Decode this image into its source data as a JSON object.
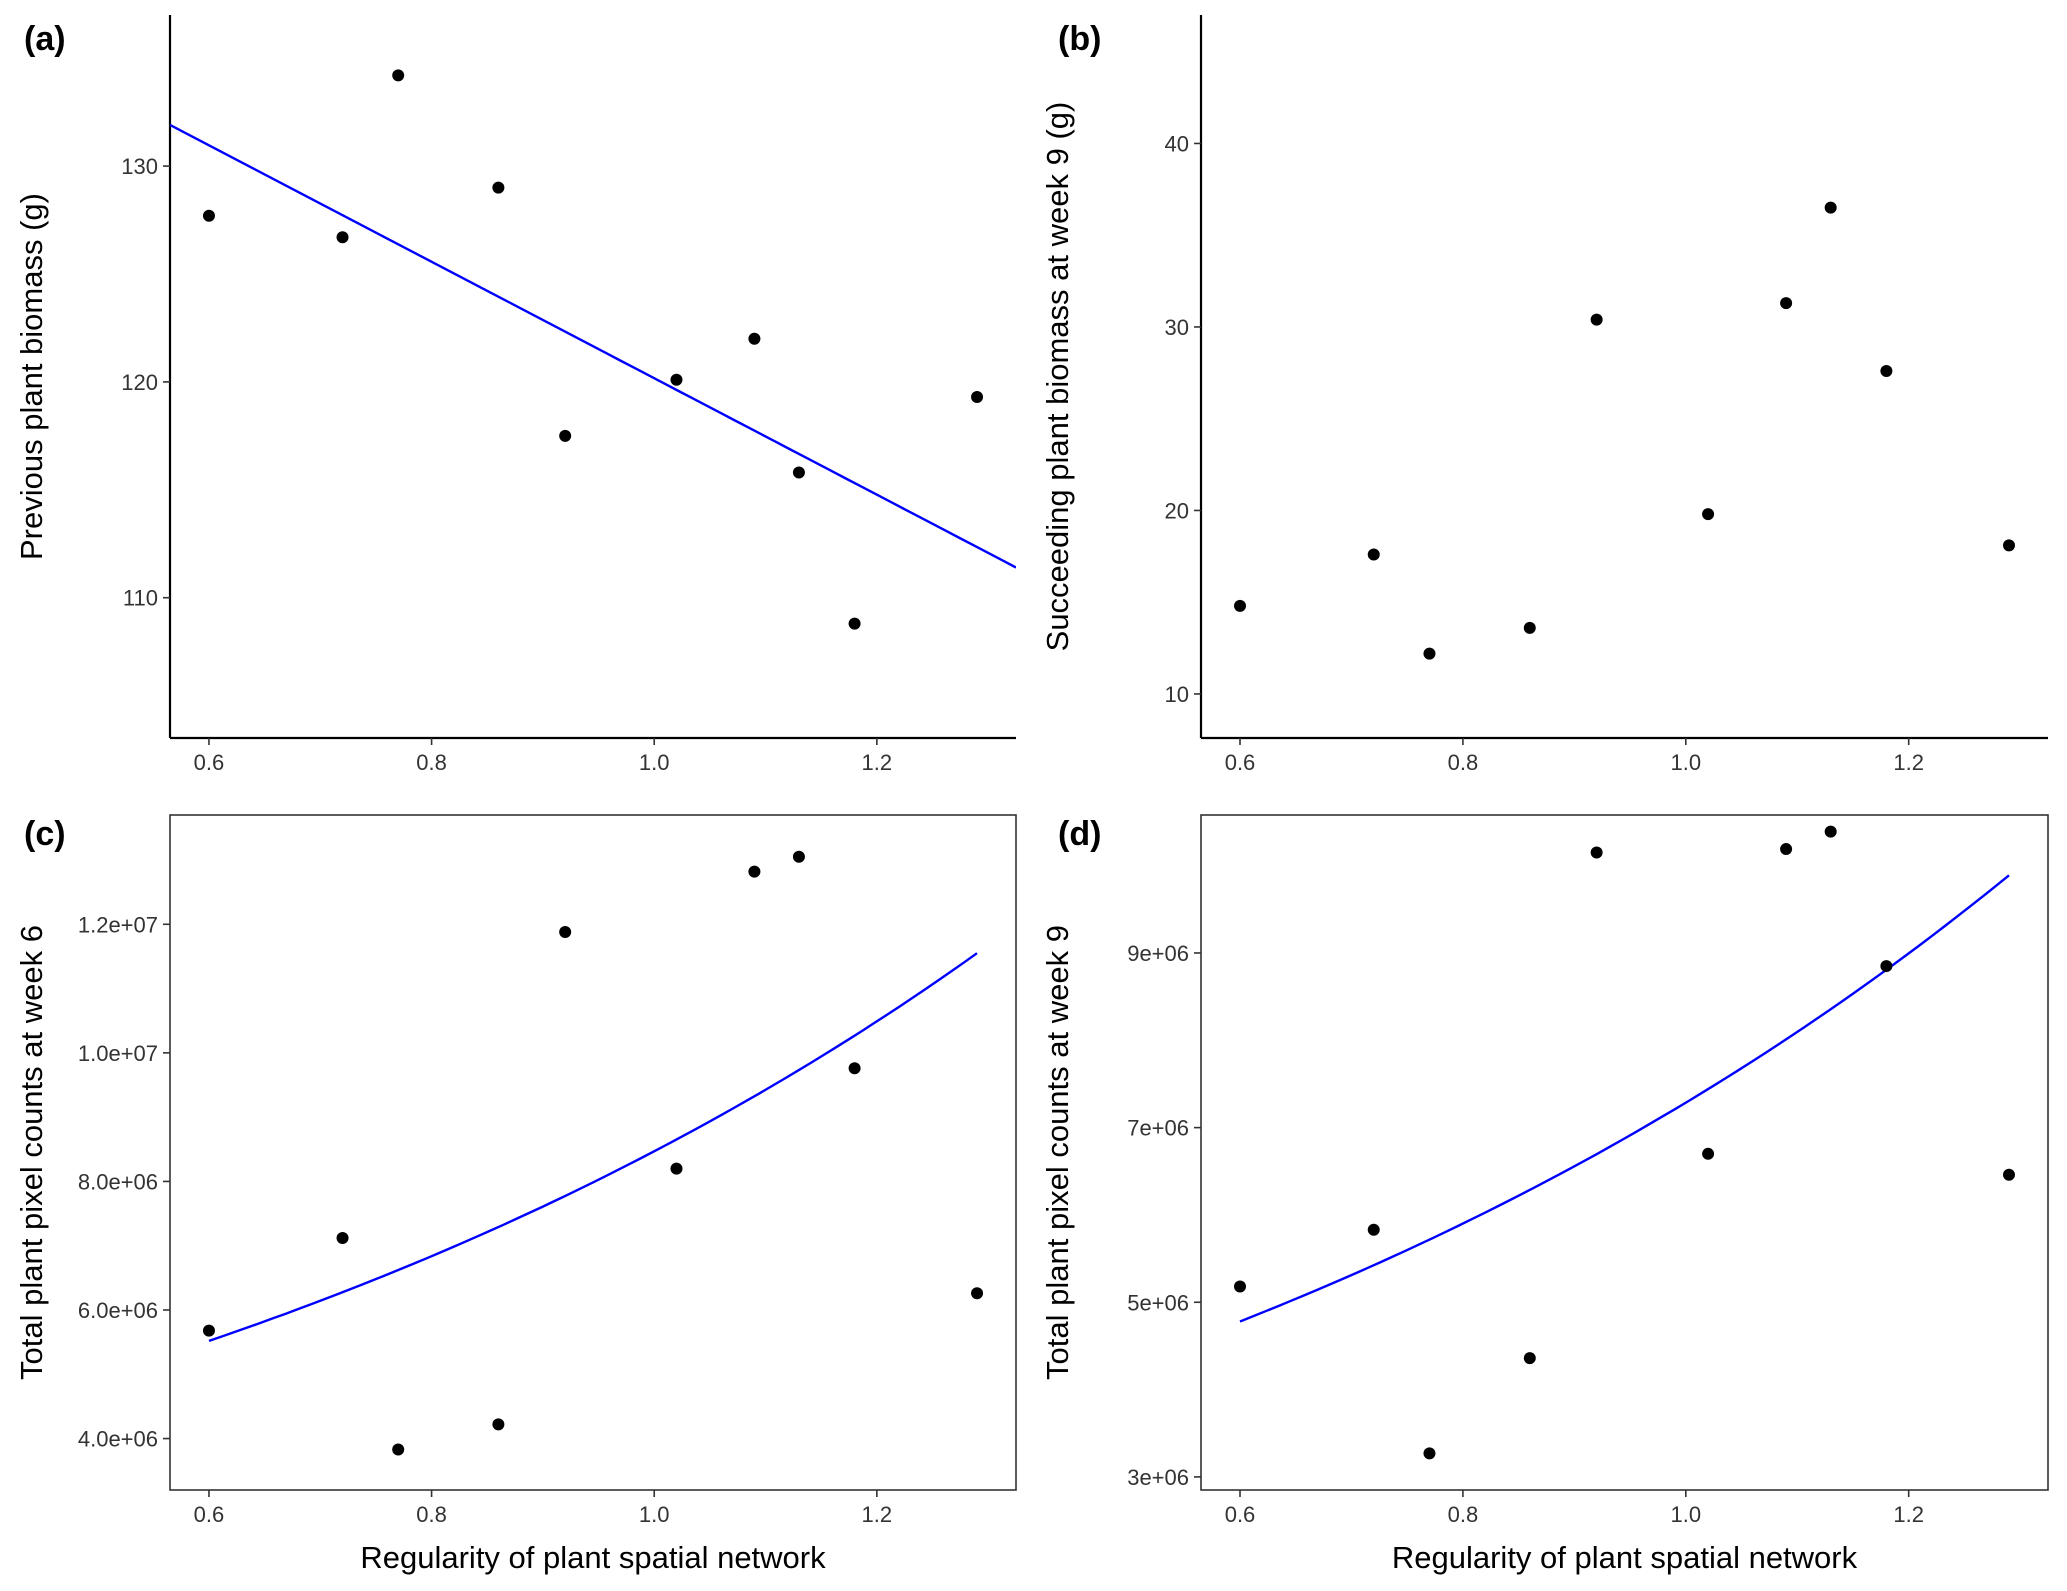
{
  "chart_data": [
    {
      "panel": "(a)",
      "type": "scatter",
      "xlabel": "",
      "ylabel": "Previous plant biomass (g)",
      "xlim": [
        0.565,
        1.325
      ],
      "ylim": [
        103.5,
        137.0
      ],
      "xticks": [
        0.6,
        0.8,
        1.0,
        1.2
      ],
      "xtick_labels": [
        "0.6",
        "0.8",
        "1.0",
        "1.2"
      ],
      "yticks": [
        110,
        120,
        130
      ],
      "ytick_labels": [
        "110",
        "120",
        "130"
      ],
      "frame": "axes-only",
      "points": [
        {
          "x": 0.6,
          "y": 127.7
        },
        {
          "x": 0.72,
          "y": 126.7
        },
        {
          "x": 0.77,
          "y": 134.2
        },
        {
          "x": 0.86,
          "y": 129.0
        },
        {
          "x": 0.92,
          "y": 117.5
        },
        {
          "x": 1.02,
          "y": 120.1
        },
        {
          "x": 1.09,
          "y": 122.0
        },
        {
          "x": 1.13,
          "y": 115.8
        },
        {
          "x": 1.18,
          "y": 108.8
        },
        {
          "x": 1.29,
          "y": 119.3
        }
      ],
      "fit": {
        "kind": "linear",
        "color": "#0000ff",
        "x_range": [
          0.565,
          1.325
        ],
        "intercept": 147.15,
        "slope": -26.98
      }
    },
    {
      "panel": "(b)",
      "type": "scatter",
      "xlabel": "",
      "ylabel": "Succeeding plant biomass at week 9 (g)",
      "xlim": [
        0.565,
        1.325
      ],
      "ylim": [
        7.6,
        47.0
      ],
      "xticks": [
        0.6,
        0.8,
        1.0,
        1.2
      ],
      "xtick_labels": [
        "0.6",
        "0.8",
        "1.0",
        "1.2"
      ],
      "yticks": [
        10,
        20,
        30,
        40
      ],
      "ytick_labels": [
        "10",
        "20",
        "30",
        "40"
      ],
      "frame": "axes-only",
      "points": [
        {
          "x": 0.6,
          "y": 14.8
        },
        {
          "x": 0.72,
          "y": 17.6
        },
        {
          "x": 0.77,
          "y": 12.2
        },
        {
          "x": 0.86,
          "y": 13.6
        },
        {
          "x": 0.92,
          "y": 30.4
        },
        {
          "x": 1.02,
          "y": 19.8
        },
        {
          "x": 1.09,
          "y": 31.3
        },
        {
          "x": 1.13,
          "y": 36.5
        },
        {
          "x": 1.18,
          "y": 27.6
        },
        {
          "x": 1.29,
          "y": 18.1
        }
      ]
    },
    {
      "panel": "(c)",
      "type": "scatter",
      "xlabel": "Regularity of plant spatial network",
      "ylabel": "Total plant pixel counts at week 6",
      "xlim": [
        0.565,
        1.325
      ],
      "ylim": [
        3200000,
        13700000
      ],
      "xticks": [
        0.6,
        0.8,
        1.0,
        1.2
      ],
      "xtick_labels": [
        "0.6",
        "0.8",
        "1.0",
        "1.2"
      ],
      "yticks": [
        4000000,
        6000000,
        8000000,
        10000000,
        12000000
      ],
      "ytick_labels": [
        "4.0e+06",
        "6.0e+06",
        "8.0e+06",
        "1.0e+07",
        "1.2e+07"
      ],
      "frame": "box",
      "points": [
        {
          "x": 0.6,
          "y": 5680000
        },
        {
          "x": 0.72,
          "y": 7120000
        },
        {
          "x": 0.77,
          "y": 3830000
        },
        {
          "x": 0.86,
          "y": 4220000
        },
        {
          "x": 0.92,
          "y": 11880000
        },
        {
          "x": 1.02,
          "y": 8200000
        },
        {
          "x": 1.09,
          "y": 12820000
        },
        {
          "x": 1.13,
          "y": 13050000
        },
        {
          "x": 1.18,
          "y": 9760000
        },
        {
          "x": 1.29,
          "y": 6260000
        }
      ],
      "fit": {
        "kind": "exponential",
        "color": "#0000ff",
        "x_range": [
          0.6,
          1.29
        ],
        "y_start": 5520000,
        "y_end": 11550000
      }
    },
    {
      "panel": "(d)",
      "type": "scatter",
      "xlabel": "Regularity of plant spatial network",
      "ylabel": "Total plant pixel counts at week 9",
      "xlim": [
        0.565,
        1.325
      ],
      "ylim": [
        2850000,
        10580000
      ],
      "xticks": [
        0.6,
        0.8,
        1.0,
        1.2
      ],
      "xtick_labels": [
        "0.6",
        "0.8",
        "1.0",
        "1.2"
      ],
      "yticks": [
        3000000,
        5000000,
        7000000,
        9000000
      ],
      "ytick_labels": [
        "3e+06",
        "5e+06",
        "7e+06",
        "9e+06"
      ],
      "frame": "box",
      "points": [
        {
          "x": 0.6,
          "y": 5180000
        },
        {
          "x": 0.72,
          "y": 5830000
        },
        {
          "x": 0.77,
          "y": 3270000
        },
        {
          "x": 0.86,
          "y": 4360000
        },
        {
          "x": 0.92,
          "y": 10150000
        },
        {
          "x": 1.02,
          "y": 6700000
        },
        {
          "x": 1.09,
          "y": 10190000
        },
        {
          "x": 1.13,
          "y": 10390000
        },
        {
          "x": 1.18,
          "y": 8850000
        },
        {
          "x": 1.29,
          "y": 6460000
        }
      ],
      "fit": {
        "kind": "exponential",
        "color": "#0000ff",
        "x_range": [
          0.6,
          1.29
        ],
        "y_start": 4780000,
        "y_end": 9890000
      }
    }
  ]
}
